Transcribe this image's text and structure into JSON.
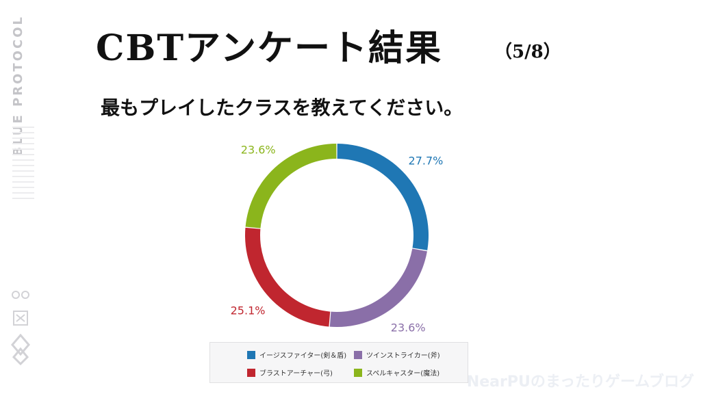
{
  "brand": {
    "vertical_text": "BLUE PROTOCOL"
  },
  "header": {
    "title": "CBTアンケート結果",
    "page_indicator": "（5/8）",
    "question": "最もプレイしたクラスを教えてください。"
  },
  "watermark": "NearPUのまったりゲームブログ",
  "chart_data": {
    "type": "pie",
    "donut": true,
    "title": "",
    "categories": [
      "イージスファイター(剣＆盾)",
      "ツインストライカー(斧)",
      "ブラストアーチャー(弓)",
      "スペルキャスター(魔法)"
    ],
    "values": [
      27.7,
      23.6,
      25.1,
      23.6
    ],
    "labels": [
      "27.7%",
      "23.6%",
      "25.1%",
      "23.6%"
    ],
    "colors": [
      "#1f77b4",
      "#8a6fa8",
      "#c0262f",
      "#8bb51c"
    ],
    "legend_position": "bottom"
  },
  "legend": {
    "items": [
      {
        "label": "イージスファイター(剣＆盾)",
        "color": "#1f77b4"
      },
      {
        "label": "ツインストライカー(斧)",
        "color": "#8a6fa8"
      },
      {
        "label": "ブラストアーチャー(弓)",
        "color": "#c0262f"
      },
      {
        "label": "スペルキャスター(魔法)",
        "color": "#8bb51c"
      }
    ]
  }
}
